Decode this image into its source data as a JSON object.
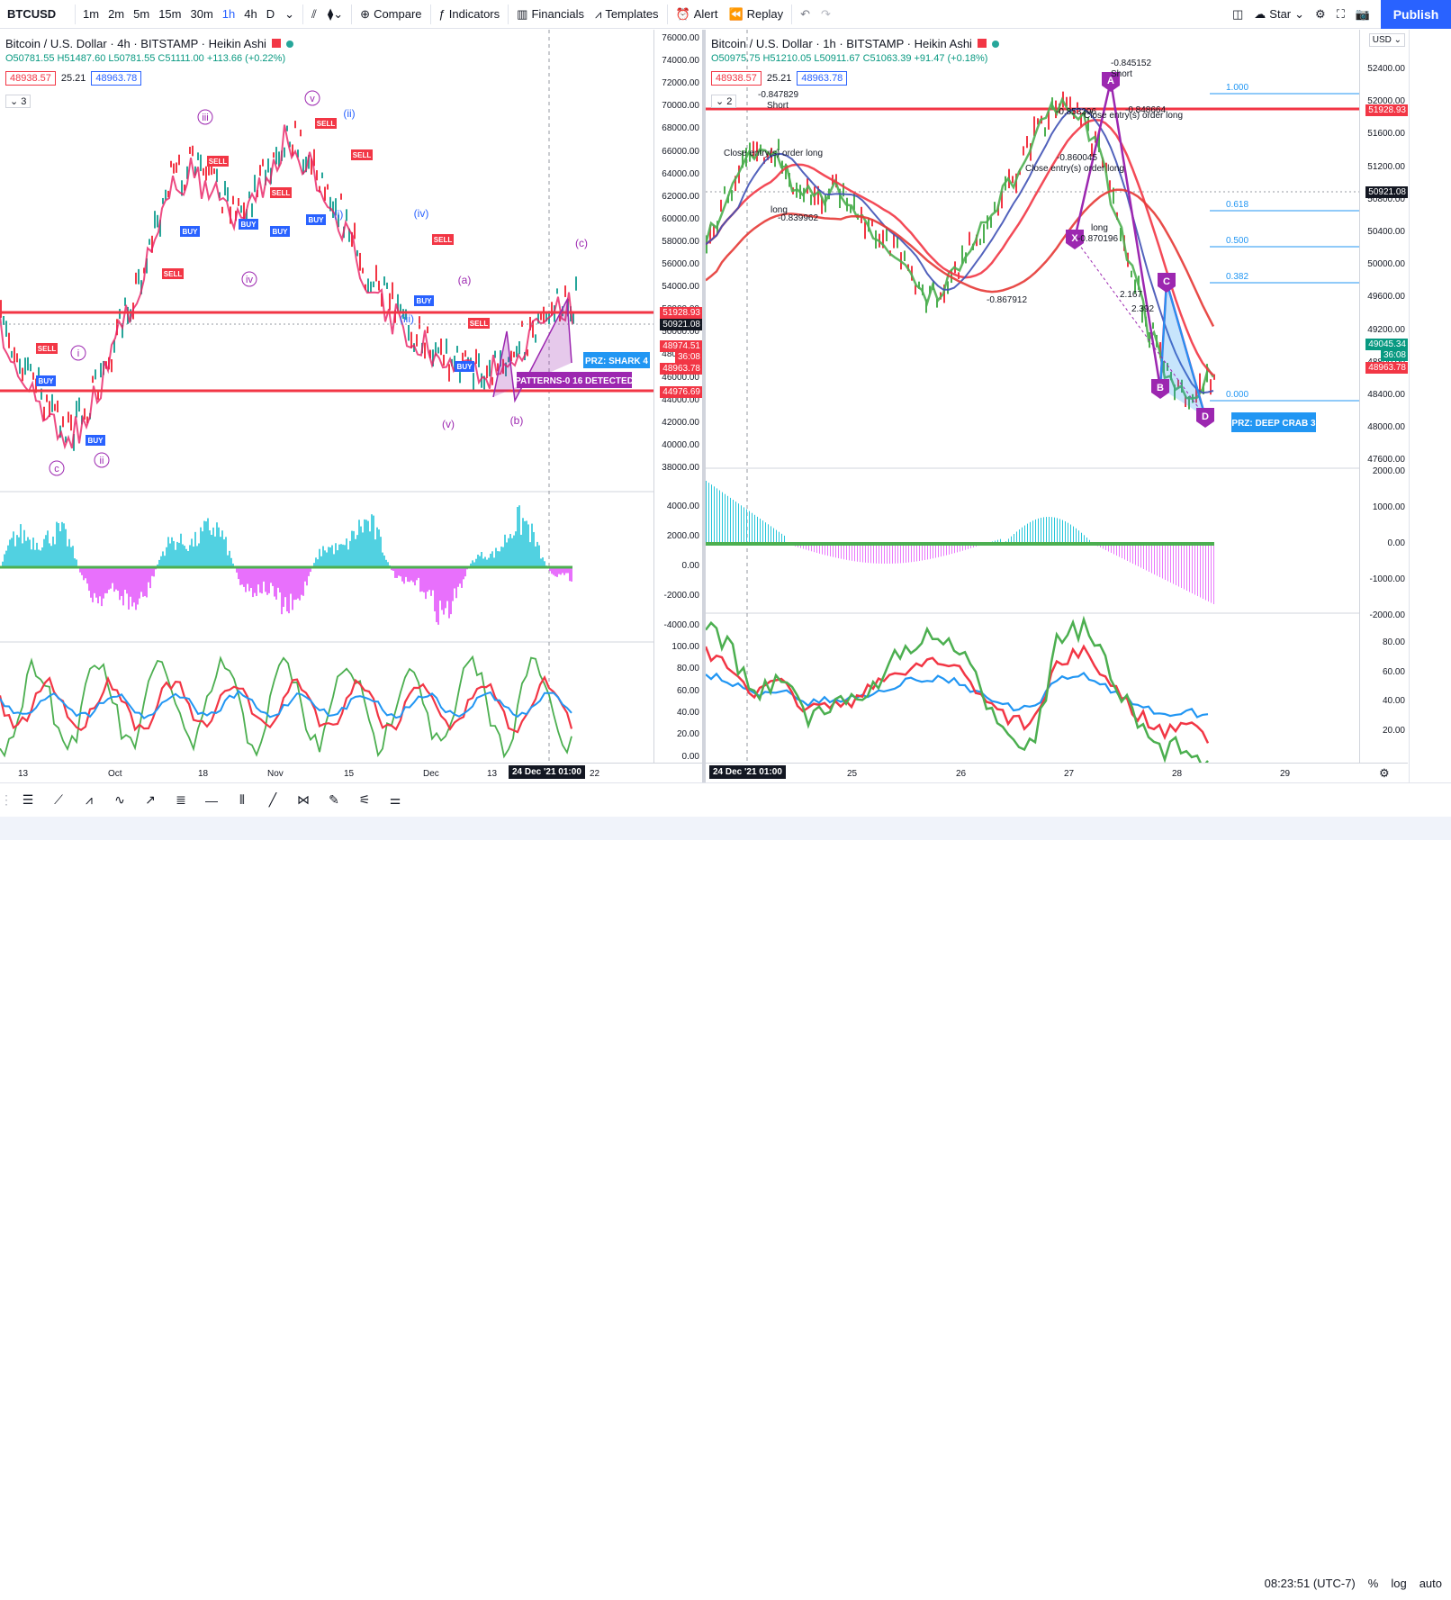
{
  "toolbar": {
    "symbol": "BTCUSD",
    "intervals": [
      "1m",
      "2m",
      "5m",
      "15m",
      "30m",
      "1h",
      "4h",
      "D"
    ],
    "active_interval": "1h",
    "compare": "Compare",
    "indicators": "Indicators",
    "financials": "Financials",
    "templates": "Templates",
    "alert": "Alert",
    "replay": "Replay",
    "star": "Star",
    "publish": "Publish"
  },
  "left_chart": {
    "title": "Bitcoin / U.S. Dollar · 4h · BITSTAMP · Heikin Ashi",
    "ohlc": "O50781.55 H51487.60 L50781.55 C51111.00 +113.66 (+0.22%)",
    "sell_box": "48938.57",
    "spread": "25.21",
    "buy_box": "48963.78",
    "collapse_count": "3",
    "price_ticks": [
      "76000.00",
      "74000.00",
      "72000.00",
      "70000.00",
      "68000.00",
      "66000.00",
      "64000.00",
      "62000.00",
      "60000.00",
      "58000.00",
      "56000.00",
      "54000.00",
      "52000.00",
      "50000.00",
      "48000.00",
      "46000.00",
      "44000.00",
      "42000.00",
      "40000.00",
      "38000.00"
    ],
    "price_labels": {
      "resistance": "51928.93",
      "current": "50921.08",
      "last": "48974.51",
      "countdown": "36:08",
      "ask": "48963.78",
      "support": "44976.69"
    },
    "osc_ticks": [
      "4000.00",
      "2000.00",
      "0.00",
      "-2000.00",
      "-4000.00"
    ],
    "rsi_ticks": [
      "100.00",
      "80.00",
      "60.00",
      "40.00",
      "20.00",
      "0.00"
    ],
    "time_labels": [
      "13",
      "Oct",
      "18",
      "Nov",
      "15",
      "Dec",
      "13",
      "22"
    ],
    "cursor_time": "24 Dec '21  01:00",
    "annotations": {
      "prz": "PRZ: SHARK 4",
      "patterns": "PATTERNS-0 16 DETECTED",
      "wave_c": "(c)",
      "wave_a": "(a)",
      "wave_b": "(b)",
      "wave_iii": "(iii)",
      "wave_iv": "(iv)",
      "wave_i": "(i)",
      "wave_ii": "(ii)",
      "wave_v": "v",
      "wave_vv": "(v)",
      "roman_iii": "iii",
      "roman_iv": "iv",
      "roman_i": "i",
      "roman_ii": "ii",
      "circle_c": "c",
      "sell": "SELL",
      "buy": "BUY"
    }
  },
  "right_chart": {
    "title": "Bitcoin / U.S. Dollar · 1h · BITSTAMP · Heikin Ashi",
    "ohlc": "O50975.75 H51210.05 L50911.67 C51063.39 +91.47 (+0.18%)",
    "sell_box": "48938.57",
    "spread": "25.21",
    "buy_box": "48963.78",
    "collapse_count": "2",
    "currency": "USD",
    "price_ticks": [
      "52400.00",
      "52000.00",
      "51600.00",
      "51200.00",
      "50800.00",
      "50400.00",
      "50000.00",
      "49600.00",
      "49200.00",
      "48800.00",
      "48400.00",
      "48000.00",
      "47600.00"
    ],
    "price_labels": {
      "resistance": "51928.93",
      "current": "50921.08",
      "last": "49045.34",
      "countdown": "36:08",
      "ask": "48963.78"
    },
    "osc_ticks": [
      "2000.00",
      "1000.00",
      "0.00",
      "-1000.00",
      "-2000.00"
    ],
    "rsi_ticks": [
      "80.00",
      "60.00",
      "40.00",
      "20.00"
    ],
    "time_labels": [
      "25",
      "26",
      "27",
      "28",
      "29"
    ],
    "cursor_time": "24 Dec '21  01:00",
    "fib": [
      {
        "label": "1.000"
      },
      {
        "label": "0.618"
      },
      {
        "label": "0.500"
      },
      {
        "label": "0.382"
      },
      {
        "label": "0.000"
      }
    ],
    "annotations": {
      "prz": "PRZ: DEEP CRAB 3",
      "short1": "-0.847829",
      "short1b": "Short",
      "close1": "Close entry(s) order long",
      "short2": "-0.845152",
      "short2b": "Short",
      "close2": "Close entry(s) order long",
      "close3": "Close entry(s) order long",
      "v1": "-0.853296",
      "v2": "-0.848664",
      "v3": "-0.860045",
      "v4": "-0.839962",
      "v5": "-0.867912",
      "v6": "-0.870196",
      "long": "long",
      "z1": "2.167",
      "z2": "2.392",
      "pts": [
        "A",
        "B",
        "C",
        "D",
        "X"
      ]
    }
  },
  "status": {
    "time": "08:23:51 (UTC-7)",
    "pct": "%",
    "log": "log",
    "auto": "auto"
  },
  "colors": {
    "up": "#26a69a",
    "down": "#f23645",
    "accent": "#2962ff",
    "pattern": "#9c27b0",
    "fib": "#2196f3"
  }
}
